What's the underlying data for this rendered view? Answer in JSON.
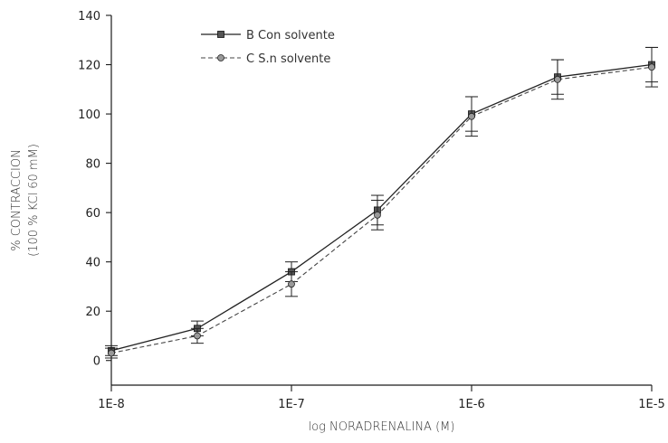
{
  "chart_data": {
    "type": "line",
    "xlabel": "log  NORADRENALINA (M)",
    "ylabel_line1": "% CONTRACCION",
    "ylabel_line2": "(100 % KCl 60 mM)",
    "x_scale": "log",
    "xlim": [
      1e-08,
      1e-05
    ],
    "ylim": [
      -10,
      140
    ],
    "x_tick_values": [
      1e-08,
      1e-07,
      1e-06,
      1e-05
    ],
    "x_tick_labels": [
      "1E-8",
      "1E-7",
      "1E-6",
      "1E-5"
    ],
    "y_ticks": [
      0,
      20,
      40,
      60,
      80,
      100,
      120,
      140
    ],
    "grid": false,
    "legend_position": "top-left",
    "series": [
      {
        "name": "B Con solvente",
        "marker": "square",
        "line": "solid",
        "x": [
          1e-08,
          3e-08,
          1e-07,
          3e-07,
          1e-06,
          3e-06,
          1e-05
        ],
        "y": [
          4,
          13,
          36,
          61,
          100,
          115,
          120
        ],
        "err": [
          2,
          3,
          4,
          6,
          7,
          7,
          7
        ]
      },
      {
        "name": "C S.n solvente",
        "marker": "circle",
        "line": "dashed",
        "x": [
          1e-08,
          3e-08,
          1e-07,
          3e-07,
          1e-06,
          3e-06,
          1e-05
        ],
        "y": [
          3,
          10,
          31,
          59,
          99,
          114,
          119
        ],
        "err": [
          2,
          3,
          5,
          6,
          8,
          8,
          8
        ]
      }
    ]
  }
}
